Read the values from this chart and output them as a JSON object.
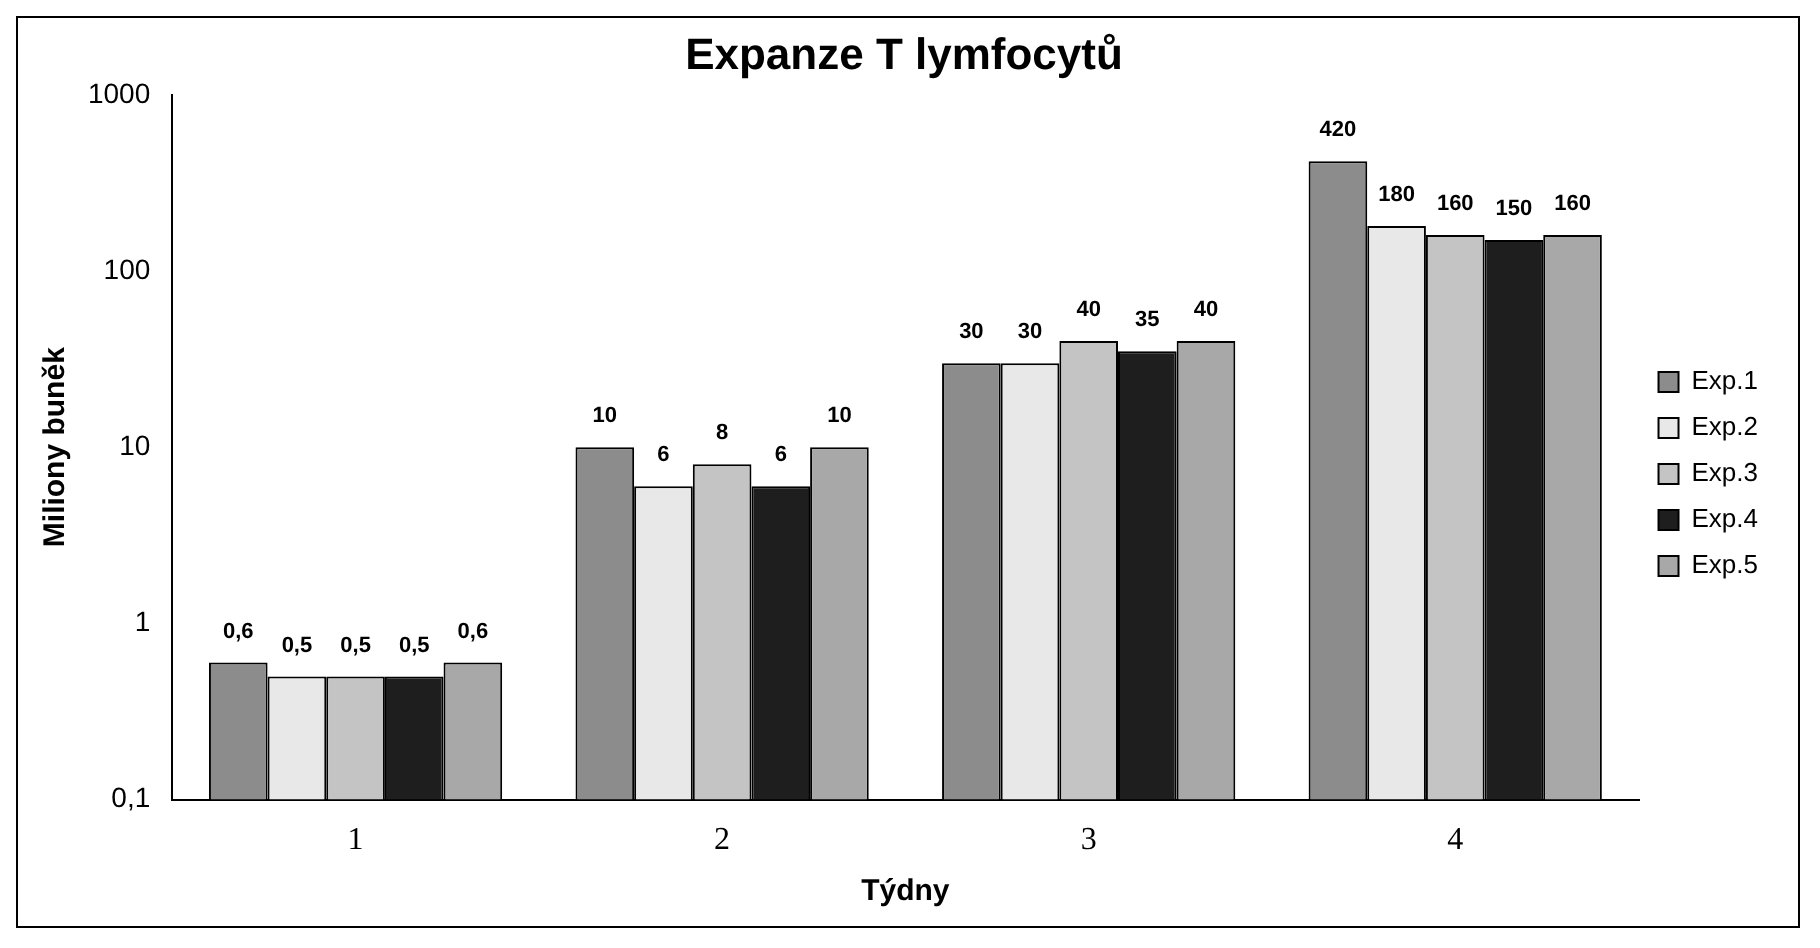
{
  "chart_data": {
    "type": "bar",
    "title": "Expanze T lymfocytů",
    "xlabel": "Týdny",
    "ylabel": "Miliony buněk",
    "categories": [
      "1",
      "2",
      "3",
      "4"
    ],
    "log": true,
    "legend": "right",
    "ylim": [
      0.1,
      1000
    ],
    "yticks": [
      {
        "value": 0.1,
        "label": "0,1"
      },
      1,
      10,
      100,
      1000
    ],
    "series": [
      {
        "name": "Exp.1",
        "color": "#8c8c8c",
        "values": [
          0.6,
          10,
          30,
          420
        ],
        "value_labels": [
          "0,6",
          "10",
          "30",
          "420"
        ]
      },
      {
        "name": "Exp.2",
        "color": "#e8e8e8",
        "values": [
          0.5,
          6,
          30,
          180
        ],
        "value_labels": [
          "0,5",
          "6",
          "30",
          "180"
        ]
      },
      {
        "name": "Exp.3",
        "color": "#c4c4c4",
        "values": [
          0.5,
          8,
          40,
          160
        ],
        "value_labels": [
          "0,5",
          "8",
          "40",
          "160"
        ]
      },
      {
        "name": "Exp.4",
        "color": "#1e1e1e",
        "values": [
          0.5,
          6,
          35,
          150
        ],
        "value_labels": [
          "0,5",
          "6",
          "35",
          "150"
        ]
      },
      {
        "name": "Exp.5",
        "color": "#a8a8a8",
        "values": [
          0.6,
          10,
          40,
          160
        ],
        "value_labels": [
          "0,6",
          "10",
          "40",
          "160"
        ]
      }
    ]
  }
}
